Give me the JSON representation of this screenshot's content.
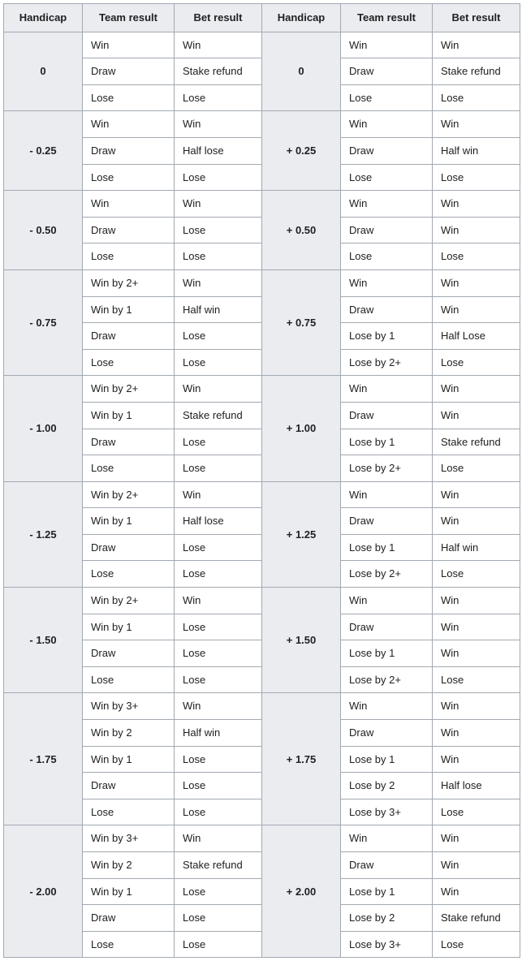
{
  "columns": [
    "Handicap",
    "Team result",
    "Bet result",
    "Handicap",
    "Team result",
    "Bet result"
  ],
  "background_colors": {
    "header": "#eaecf0",
    "cell": "#ffffff",
    "handicap_cell": "#eaecf0"
  },
  "border_color": "#a2a9b1",
  "text_color": "#202122",
  "font_size_pt": 10,
  "blocks": [
    {
      "leftHandicap": "0",
      "rightHandicap": "0",
      "leftRows": [
        [
          "Win",
          "Win"
        ],
        [
          "Draw",
          "Stake refund"
        ],
        [
          "Lose",
          "Lose"
        ]
      ],
      "rightRows": [
        [
          "Win",
          "Win"
        ],
        [
          "Draw",
          "Stake refund"
        ],
        [
          "Lose",
          "Lose"
        ]
      ]
    },
    {
      "leftHandicap": "- 0.25",
      "rightHandicap": "+ 0.25",
      "leftRows": [
        [
          "Win",
          "Win"
        ],
        [
          "Draw",
          "Half lose"
        ],
        [
          "Lose",
          "Lose"
        ]
      ],
      "rightRows": [
        [
          "Win",
          "Win"
        ],
        [
          "Draw",
          "Half win"
        ],
        [
          "Lose",
          "Lose"
        ]
      ]
    },
    {
      "leftHandicap": "- 0.50",
      "rightHandicap": "+ 0.50",
      "leftRows": [
        [
          "Win",
          "Win"
        ],
        [
          "Draw",
          "Lose"
        ],
        [
          "Lose",
          "Lose"
        ]
      ],
      "rightRows": [
        [
          "Win",
          "Win"
        ],
        [
          "Draw",
          "Win"
        ],
        [
          "Lose",
          "Lose"
        ]
      ]
    },
    {
      "leftHandicap": "- 0.75",
      "rightHandicap": "+ 0.75",
      "leftRows": [
        [
          "Win by 2+",
          "Win"
        ],
        [
          "Win by 1",
          "Half win"
        ],
        [
          "Draw",
          "Lose"
        ],
        [
          "Lose",
          "Lose"
        ]
      ],
      "rightRows": [
        [
          "Win",
          "Win"
        ],
        [
          "Draw",
          "Win"
        ],
        [
          "Lose by 1",
          "Half Lose"
        ],
        [
          "Lose by 2+",
          "Lose"
        ]
      ]
    },
    {
      "leftHandicap": "- 1.00",
      "rightHandicap": "+ 1.00",
      "leftRows": [
        [
          "Win by 2+",
          "Win"
        ],
        [
          "Win by 1",
          "Stake refund"
        ],
        [
          "Draw",
          "Lose"
        ],
        [
          "Lose",
          "Lose"
        ]
      ],
      "rightRows": [
        [
          "Win",
          "Win"
        ],
        [
          "Draw",
          "Win"
        ],
        [
          "Lose by 1",
          "Stake refund"
        ],
        [
          "Lose by 2+",
          "Lose"
        ]
      ]
    },
    {
      "leftHandicap": "- 1.25",
      "rightHandicap": "+ 1.25",
      "leftRows": [
        [
          "Win by 2+",
          "Win"
        ],
        [
          "Win by 1",
          "Half lose"
        ],
        [
          "Draw",
          "Lose"
        ],
        [
          "Lose",
          "Lose"
        ]
      ],
      "rightRows": [
        [
          "Win",
          "Win"
        ],
        [
          "Draw",
          "Win"
        ],
        [
          "Lose by 1",
          "Half win"
        ],
        [
          "Lose by 2+",
          "Lose"
        ]
      ]
    },
    {
      "leftHandicap": "- 1.50",
      "rightHandicap": "+ 1.50",
      "leftRows": [
        [
          "Win by 2+",
          "Win"
        ],
        [
          "Win by 1",
          "Lose"
        ],
        [
          "Draw",
          "Lose"
        ],
        [
          "Lose",
          "Lose"
        ]
      ],
      "rightRows": [
        [
          "Win",
          "Win"
        ],
        [
          "Draw",
          "Win"
        ],
        [
          "Lose by 1",
          "Win"
        ],
        [
          "Lose by 2+",
          "Lose"
        ]
      ]
    },
    {
      "leftHandicap": "- 1.75",
      "rightHandicap": "+ 1.75",
      "leftRows": [
        [
          "Win by 3+",
          "Win"
        ],
        [
          "Win by 2",
          "Half win"
        ],
        [
          "Win by 1",
          "Lose"
        ],
        [
          "Draw",
          "Lose"
        ],
        [
          "Lose",
          "Lose"
        ]
      ],
      "rightRows": [
        [
          "Win",
          "Win"
        ],
        [
          "Draw",
          "Win"
        ],
        [
          "Lose by 1",
          "Win"
        ],
        [
          "Lose by 2",
          "Half lose"
        ],
        [
          "Lose by 3+",
          "Lose"
        ]
      ]
    },
    {
      "leftHandicap": "- 2.00",
      "rightHandicap": "+ 2.00",
      "leftRows": [
        [
          "Win by 3+",
          "Win"
        ],
        [
          "Win by 2",
          "Stake refund"
        ],
        [
          "Win by 1",
          "Lose"
        ],
        [
          "Draw",
          "Lose"
        ],
        [
          "Lose",
          "Lose"
        ]
      ],
      "rightRows": [
        [
          "Win",
          "Win"
        ],
        [
          "Draw",
          "Win"
        ],
        [
          "Lose by 1",
          "Win"
        ],
        [
          "Lose by 2",
          "Stake refund"
        ],
        [
          "Lose by 3+",
          "Lose"
        ]
      ]
    }
  ]
}
